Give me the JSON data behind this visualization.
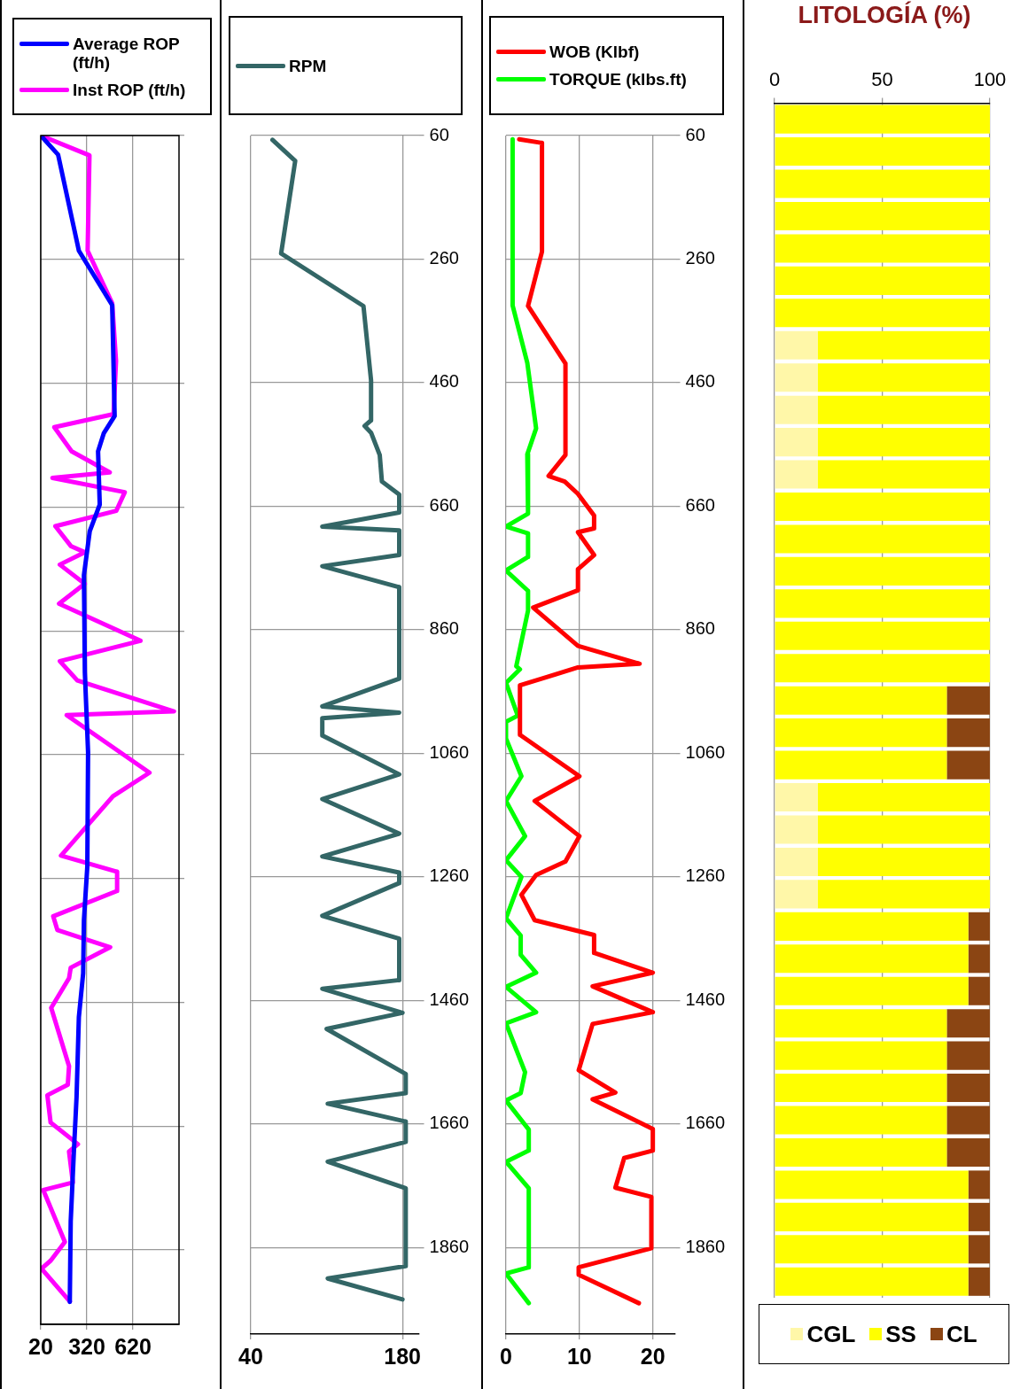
{
  "chart_data": [
    {
      "type": "line",
      "legend": "top",
      "grid": true,
      "tick_labels": "x",
      "marker": "none",
      "line_style": "solid",
      "xlim": [
        20,
        920
      ],
      "xticks": [
        20,
        320,
        620
      ],
      "ylim": [
        1980,
        60
      ],
      "yticks": [
        60,
        260,
        460,
        660,
        860,
        1060,
        1260,
        1460,
        1660,
        1860
      ],
      "series": [
        {
          "name": "Average ROP (ft/h)",
          "color": "#0000ff",
          "x": [
            20,
            133,
            268,
            485,
            501,
            430,
            393,
            404,
            339,
            301,
            307,
            328,
            323,
            301,
            296,
            268,
            253,
            236,
            215,
            209
          ],
          "values": [
            60,
            91,
            246,
            334,
            513,
            541,
            570,
            656,
            699,
            770,
            927,
            1056,
            1241,
            1327,
            1413,
            1484,
            1613,
            1699,
            1813,
            1944
          ]
        },
        {
          "name": "Inst ROP (ft/h)",
          "color": "#ff00ff",
          "x": [
            20,
            337,
            325,
            485,
            510,
            494,
            108,
            221,
            469,
            96,
            567,
            512,
            115,
            216,
            306,
            144,
            306,
            139,
            669,
            144,
            258,
            887,
            188,
            728,
            490,
            152,
            517,
            517,
            101,
            128,
            472,
            215,
            204,
            88,
            204,
            196,
            63,
            84,
            262,
            204,
            229,
            36,
            177,
            85,
            25,
            209
          ],
          "values": [
            60,
            92,
            246,
            331,
            424,
            510,
            531,
            570,
            604,
            613,
            636,
            666,
            691,
            723,
            733,
            753,
            784,
            816,
            876,
            909,
            940,
            990,
            996,
            1089,
            1127,
            1223,
            1249,
            1280,
            1321,
            1343,
            1371,
            1404,
            1421,
            1469,
            1563,
            1593,
            1610,
            1654,
            1689,
            1701,
            1751,
            1763,
            1847,
            1877,
            1890,
            1943
          ]
        }
      ]
    },
    {
      "type": "line",
      "legend": "top",
      "grid": true,
      "marker": "none",
      "line_style": "solid",
      "xlim": [
        40,
        195
      ],
      "xticks": [
        40,
        180
      ],
      "ylim": [
        2000,
        60
      ],
      "yticks": [
        60,
        260,
        460,
        660,
        860,
        1060,
        1260,
        1460,
        1660,
        1860
      ],
      "series": [
        {
          "name": "RPM",
          "color": "#336666",
          "x": [
            60,
            81,
            68,
            144,
            151,
            151,
            145,
            151,
            159,
            161,
            177,
            177,
            106,
            177,
            177,
            106,
            177,
            177,
            106,
            177,
            106,
            106,
            177,
            106,
            177,
            106,
            177,
            177,
            106,
            177,
            177,
            106,
            180,
            110,
            183,
            183,
            111,
            183,
            183,
            111,
            183,
            183,
            111,
            180
          ],
          "values": [
            67,
            101,
            251,
            336,
            456,
            521,
            530,
            541,
            577,
            620,
            641,
            670,
            693,
            699,
            739,
            757,
            791,
            939,
            984,
            994,
            1003,
            1031,
            1094,
            1134,
            1190,
            1227,
            1253,
            1270,
            1323,
            1360,
            1427,
            1441,
            1480,
            1506,
            1579,
            1610,
            1627,
            1656,
            1689,
            1721,
            1764,
            1890,
            1910,
            1944
          ]
        }
      ]
    },
    {
      "type": "line",
      "legend": "top",
      "grid": true,
      "marker": "none",
      "line_style": "solid",
      "xlim": [
        0,
        23
      ],
      "xticks": [
        0,
        10,
        20
      ],
      "ylim": [
        2000,
        60
      ],
      "yticks": [
        60,
        260,
        460,
        660,
        860,
        1060,
        1260,
        1460,
        1660,
        1860
      ],
      "series": [
        {
          "name": "WOB (Klbf)",
          "color": "#ff0000",
          "x": [
            1.8,
            4.9,
            4.9,
            3,
            8.1,
            8.1,
            5.8,
            8,
            9.8,
            12,
            12,
            9.8,
            12,
            9.8,
            9.8,
            3.7,
            9.8,
            18.2,
            9.8,
            1.9,
            1.9,
            10,
            3.9,
            10,
            8.1,
            4.1,
            2.1,
            3.9,
            12,
            12,
            20,
            11.8,
            20,
            11.8,
            9.9,
            14.9,
            11.8,
            20,
            20,
            16.1,
            14.9,
            19.8,
            19.8,
            9.9,
            9.9,
            18.1
          ],
          "values": [
            66,
            72,
            248,
            336,
            429,
            577,
            611,
            620,
            640,
            675,
            696,
            702,
            739,
            762,
            796,
            824,
            886,
            915,
            921,
            950,
            1030,
            1097,
            1137,
            1194,
            1235,
            1257,
            1289,
            1330,
            1354,
            1383,
            1415,
            1437,
            1479,
            1498,
            1573,
            1609,
            1620,
            1668,
            1703,
            1715,
            1763,
            1778,
            1861,
            1892,
            1904,
            1950
          ]
        },
        {
          "name": "TORQUE (klbs.ft)",
          "color": "#00ff00",
          "x": [
            0.9,
            0.9,
            2.9,
            4.1,
            2.9,
            3,
            0,
            3,
            3,
            0,
            3,
            3,
            1.4,
            1.9,
            0,
            1.6,
            0,
            0,
            2.1,
            0,
            2.6,
            0,
            2.1,
            0,
            2,
            2,
            4.1,
            0,
            4.1,
            0,
            2.6,
            2,
            0,
            3.1,
            3.1,
            0,
            3.1,
            3.1,
            0,
            3.1
          ],
          "values": [
            66,
            335,
            428,
            534,
            576,
            672,
            693,
            704,
            742,
            764,
            797,
            829,
            919,
            924,
            946,
            999,
            1009,
            1036,
            1097,
            1137,
            1194,
            1233,
            1260,
            1327,
            1355,
            1386,
            1415,
            1438,
            1479,
            1497,
            1576,
            1610,
            1622,
            1669,
            1703,
            1721,
            1764,
            1892,
            1902,
            1950
          ]
        }
      ]
    },
    {
      "type": "bar",
      "title": "LITOLOGÍA (%)",
      "orientation": "horizontal",
      "stacked": true,
      "legend": "bottom",
      "grid": "x",
      "tick_labels": "x",
      "xlim": [
        0,
        100
      ],
      "xticks": [
        0,
        50,
        100
      ],
      "categories": [
        null,
        null,
        null,
        null,
        null,
        null,
        null,
        null,
        null,
        null,
        null,
        null,
        null,
        null,
        null,
        null,
        null,
        null,
        null,
        null,
        null,
        null,
        null,
        null,
        null,
        null,
        null,
        null,
        null,
        null,
        null,
        null,
        null,
        null,
        null,
        null,
        null
      ],
      "series": [
        {
          "name": "CGL",
          "color": "#fff7a8",
          "values": [
            0,
            0,
            0,
            0,
            0,
            0,
            0,
            20,
            20,
            20,
            20,
            20,
            0,
            0,
            0,
            0,
            0,
            0,
            0,
            0,
            0,
            20,
            20,
            20,
            20,
            0,
            0,
            0,
            0,
            0,
            0,
            0,
            0,
            0,
            0,
            0,
            0
          ]
        },
        {
          "name": "SS",
          "color": "#ffff00",
          "values": [
            100,
            100,
            100,
            100,
            100,
            100,
            100,
            80,
            80,
            80,
            80,
            80,
            100,
            100,
            100,
            100,
            100,
            100,
            80,
            80,
            80,
            80,
            80,
            80,
            80,
            90,
            90,
            90,
            80,
            80,
            80,
            80,
            80,
            90,
            90,
            90,
            90
          ]
        },
        {
          "name": "CL",
          "color": "#8b4513",
          "values": [
            0,
            0,
            0,
            0,
            0,
            0,
            0,
            0,
            0,
            0,
            0,
            0,
            0,
            0,
            0,
            0,
            0,
            0,
            20,
            20,
            20,
            0,
            0,
            0,
            0,
            10,
            10,
            10,
            20,
            20,
            20,
            20,
            20,
            10,
            10,
            10,
            10
          ]
        }
      ]
    }
  ]
}
